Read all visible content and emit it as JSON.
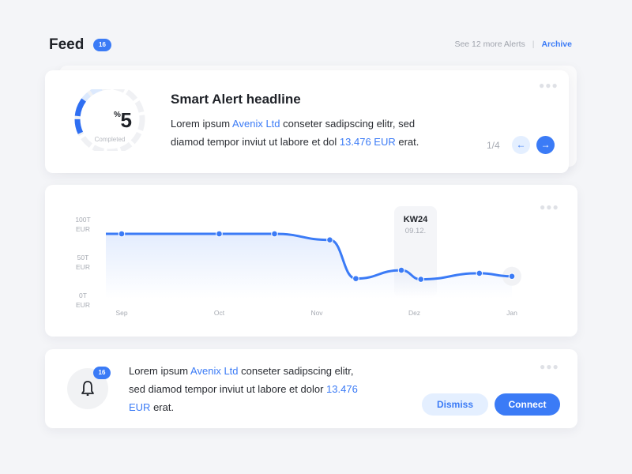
{
  "header": {
    "title": "Feed",
    "badge": "16",
    "more_alerts": "See 12 more Alerts",
    "separator": "|",
    "archive": "Archive"
  },
  "colors": {
    "accent": "#3b7bf6",
    "accent_light": "#e4efff",
    "background": "#f4f5f8"
  },
  "smart_alert": {
    "progress_percent": 5,
    "progress_value": "5",
    "progress_unit": "%",
    "progress_label": "Completed",
    "headline": "Smart Alert headline",
    "body": [
      {
        "text": "Lorem ipsum ",
        "hl": false
      },
      {
        "text": "Avenix Ltd",
        "hl": true
      },
      {
        "text": " conseter sadipscing elitr, sed diamod tempor inviut ut labore et dol ",
        "hl": false
      },
      {
        "text": "13.476 EUR",
        "hl": true
      },
      {
        "text": " erat.",
        "hl": false
      }
    ],
    "pager": "1/4",
    "prev_icon": "arrow-left-icon",
    "next_icon": "arrow-right-icon",
    "menu_icon": "more-dots-icon"
  },
  "chart_data": {
    "type": "line",
    "y_ticks": [
      {
        "value": 100,
        "label": "100T",
        "unit": "EUR"
      },
      {
        "value": 50,
        "label": "50T",
        "unit": "EUR"
      },
      {
        "value": 0,
        "label": "0T",
        "unit": "EUR"
      }
    ],
    "x_ticks": [
      "Sep",
      "Oct",
      "Nov",
      "Dez",
      "Jan"
    ],
    "ylim": [
      0,
      100
    ],
    "grid": false,
    "fill": "area-gradient",
    "points": [
      {
        "x": "09-01",
        "y": 75
      },
      {
        "x": "10-01",
        "y": 75
      },
      {
        "x": "10-18",
        "y": 75
      },
      {
        "x": "11-05",
        "y": 67
      },
      {
        "x": "11-13",
        "y": 16
      },
      {
        "x": "11-27",
        "y": 27
      },
      {
        "x": "12-03",
        "y": 15
      },
      {
        "x": "12-21",
        "y": 23
      },
      {
        "x": "01-01",
        "y": 19
      }
    ],
    "tooltip": {
      "title": "KW24",
      "date": "09.12."
    }
  },
  "notification": {
    "badge": "16",
    "icon": "bell-icon",
    "body": [
      {
        "text": "Lorem ipsum ",
        "hl": false
      },
      {
        "text": "Avenix Ltd",
        "hl": true
      },
      {
        "text": " conseter sadipscing elitr, sed diamod tempor inviut ut labore et dolor ",
        "hl": false
      },
      {
        "text": "13.476 EUR",
        "hl": true
      },
      {
        "text": " erat.",
        "hl": false
      }
    ],
    "dismiss": "Dismiss",
    "connect": "Connect"
  }
}
